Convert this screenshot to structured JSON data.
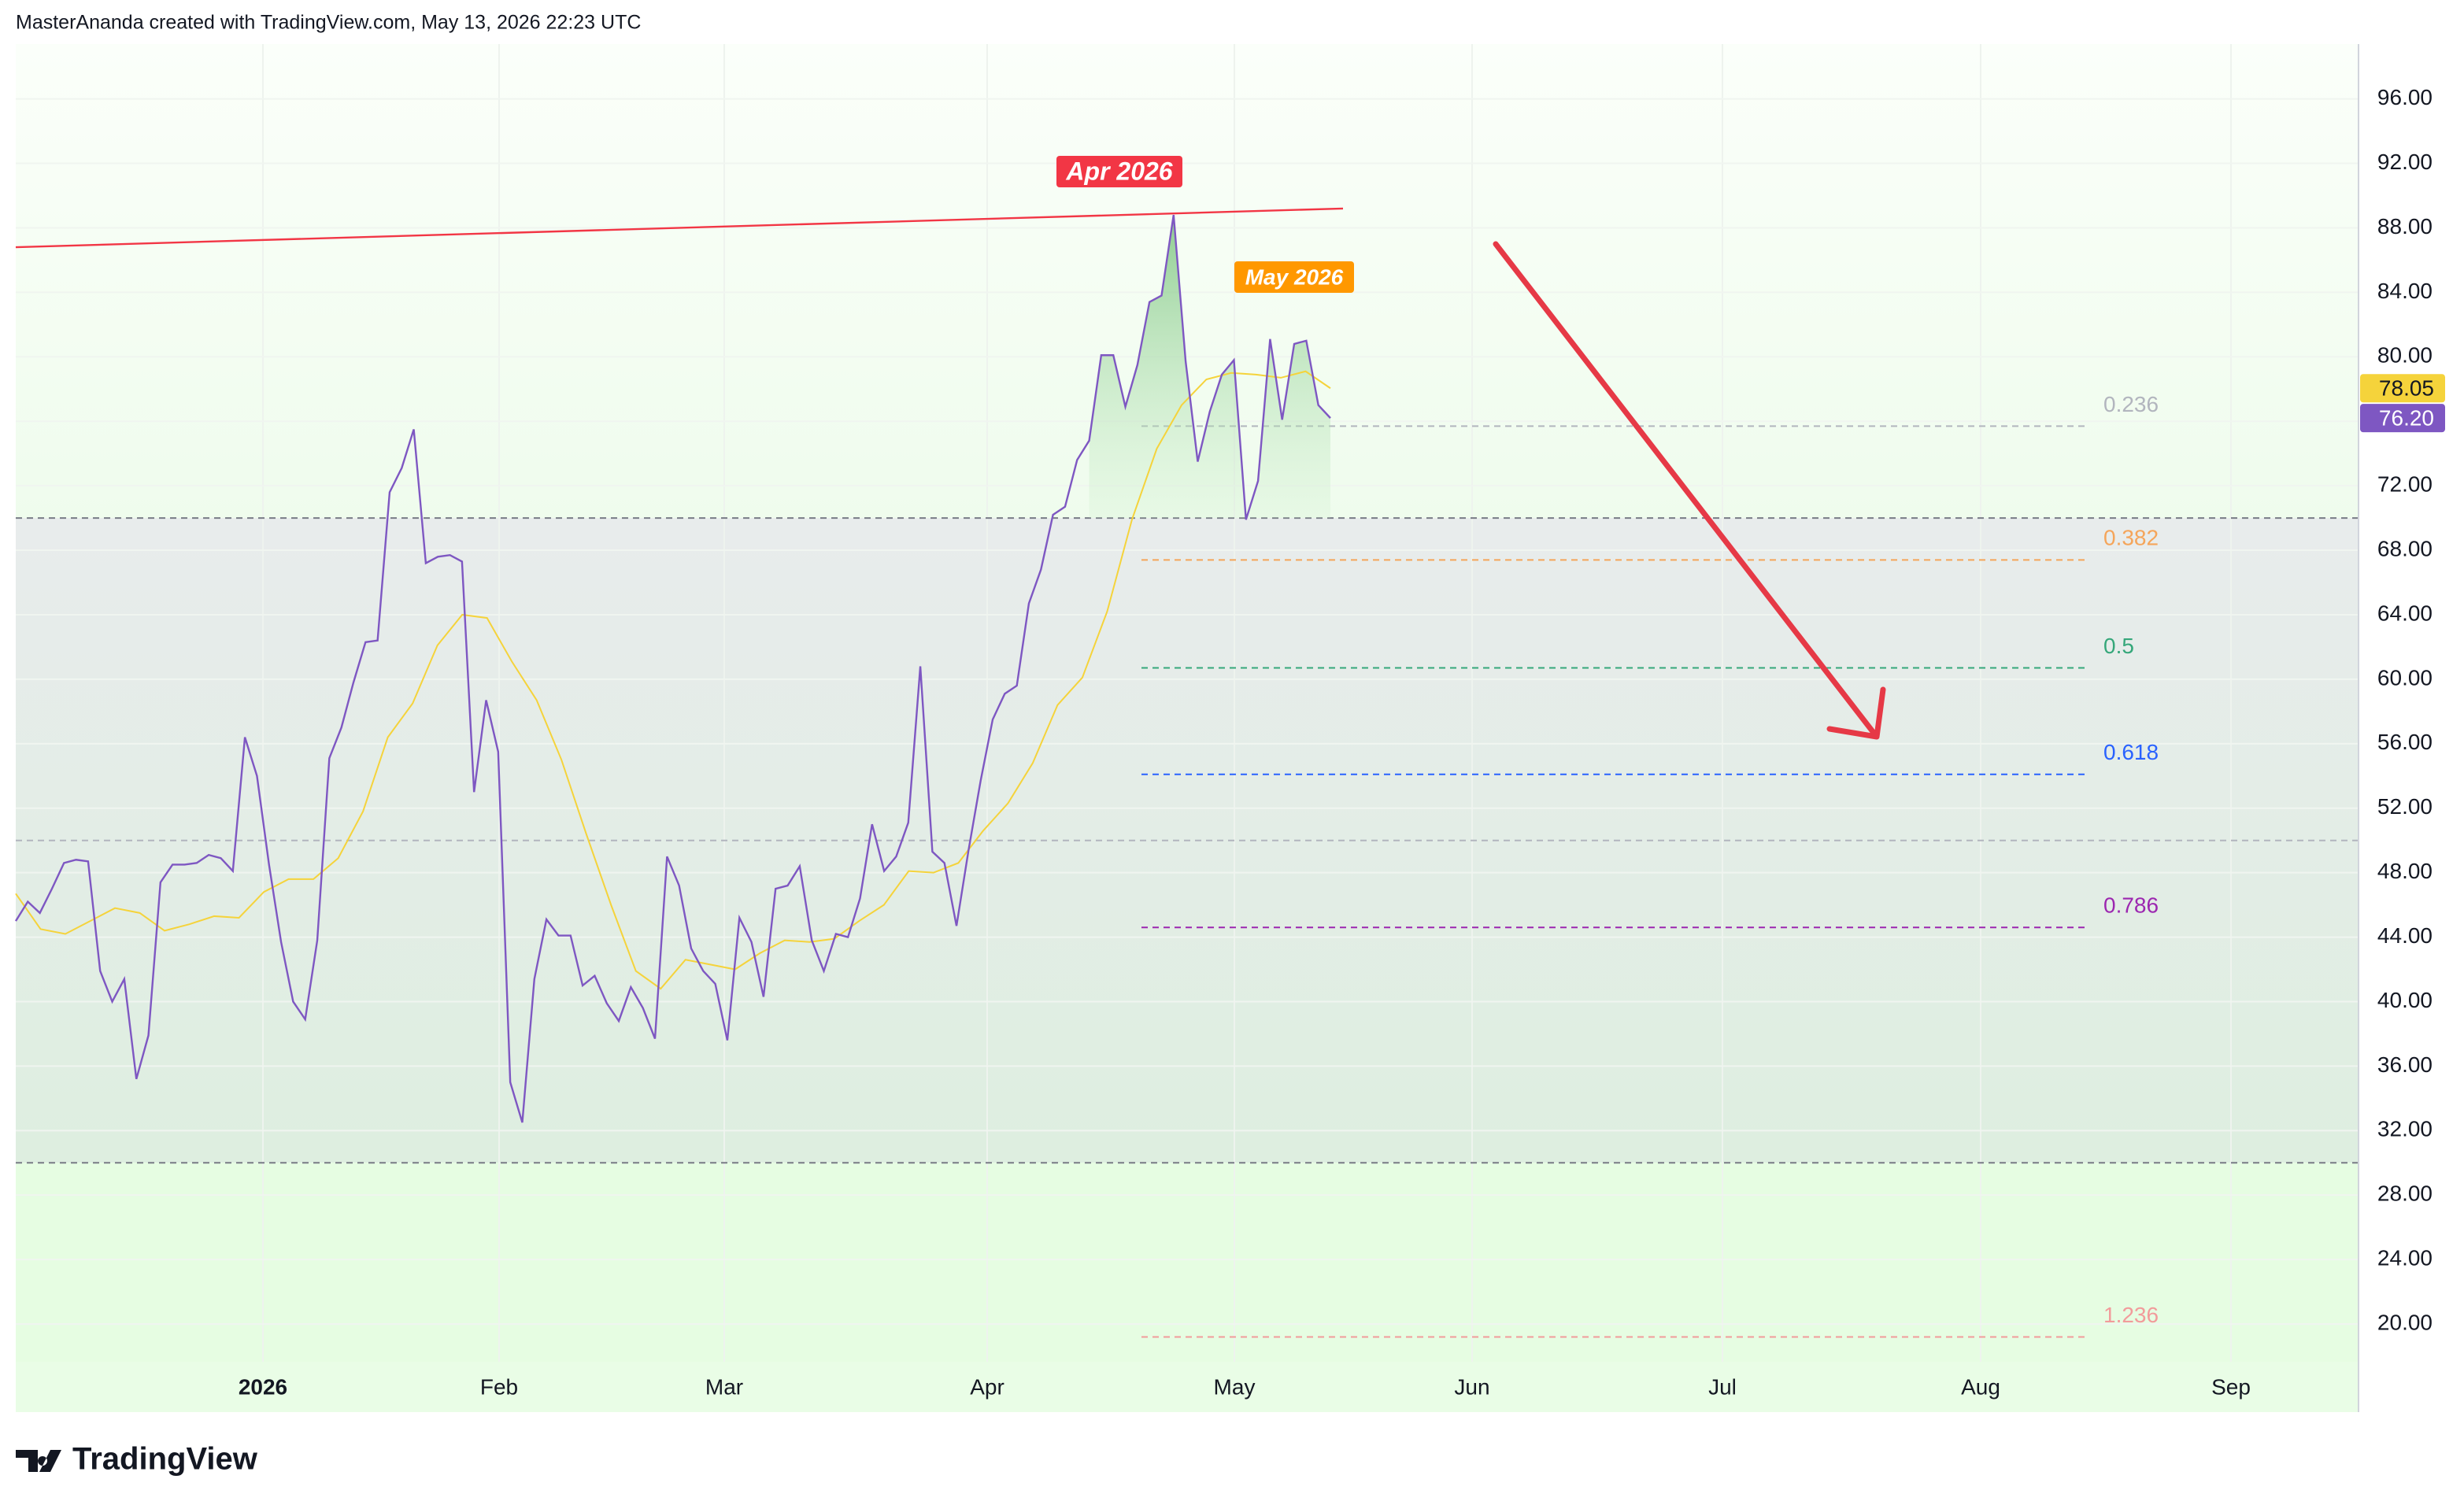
{
  "header": {
    "text": "MasterAnanda created with TradingView.com, May 13, 2026 22:23 UTC"
  },
  "footer": {
    "logo": "TradingView"
  },
  "chart_data": {
    "type": "line",
    "ylim": [
      17.66,
      99.4
    ],
    "yticks": [
      {
        "value": 20,
        "label": "20.00"
      },
      {
        "value": 24,
        "label": "24.00"
      },
      {
        "value": 28,
        "label": "28.00"
      },
      {
        "value": 32,
        "label": "32.00"
      },
      {
        "value": 36,
        "label": "36.00"
      },
      {
        "value": 40,
        "label": "40.00"
      },
      {
        "value": 44,
        "label": "44.00"
      },
      {
        "value": 48,
        "label": "48.00"
      },
      {
        "value": 52,
        "label": "52.00"
      },
      {
        "value": 56,
        "label": "56.00"
      },
      {
        "value": 60,
        "label": "60.00"
      },
      {
        "value": 64,
        "label": "64.00"
      },
      {
        "value": 68,
        "label": "68.00"
      },
      {
        "value": 72,
        "label": "72.00"
      },
      {
        "value": 76,
        "label": "76.00"
      },
      {
        "value": 80,
        "label": "80.00"
      },
      {
        "value": 84,
        "label": "84.00"
      },
      {
        "value": 88,
        "label": "88.00"
      },
      {
        "value": 92,
        "label": "92.00"
      },
      {
        "value": 96,
        "label": "96.00"
      }
    ],
    "x_labels": [
      "2026",
      "Feb",
      "Mar",
      "Apr",
      "May",
      "Jun",
      "Jul",
      "Aug",
      "Sep"
    ],
    "levels": [
      {
        "value": 70,
        "color": "#787b86"
      },
      {
        "value": 50,
        "color": "#b2b5be"
      },
      {
        "value": 30,
        "color": "#787b86"
      }
    ],
    "series": [
      {
        "color": "#7e57c2",
        "last_label": "76.20",
        "values": [
          45,
          46.2,
          45.5,
          47,
          48.6,
          48.8,
          48.7,
          41.9,
          40,
          41.4,
          35.2,
          37.9,
          47.4,
          48.5,
          48.5,
          48.6,
          49.1,
          48.9,
          48.1,
          56.4,
          54,
          48.5,
          43.7,
          40,
          38.9,
          43.8,
          55.1,
          57,
          59.8,
          62.3,
          62.4,
          71.6,
          73.1,
          75.5,
          67.2,
          67.6,
          67.7,
          67.3,
          53,
          58.7,
          55.5,
          35,
          32.5,
          41.4,
          45.1,
          44.1,
          44.1,
          41,
          41.6,
          39.9,
          38.8,
          40.9,
          39.6,
          37.7,
          49,
          47.2,
          43.3,
          41.9,
          41.1,
          37.6,
          45.2,
          43.7,
          40.3,
          47,
          47.2,
          48.4,
          43.8,
          41.9,
          44.2,
          44,
          46.4,
          51,
          48.1,
          49,
          51.1,
          60.8,
          49.3,
          48.6,
          44.7,
          49.4,
          53.7,
          57.5,
          59.1,
          59.6,
          64.7,
          66.8,
          70.2,
          70.7,
          73.6,
          74.8,
          80.1,
          80.1,
          76.9,
          79.5,
          83.4,
          83.8,
          88.8,
          79.7,
          73.5,
          76.6,
          78.9,
          79.8,
          69.9,
          72.3,
          81.1,
          76.1,
          80.8,
          81,
          77,
          76.2
        ]
      },
      {
        "color": "#f5d33b",
        "last_label": "78.05",
        "values": [
          46.7,
          44.5,
          44.2,
          45,
          45.8,
          45.5,
          44.4,
          44.8,
          45.3,
          45.2,
          46.8,
          47.6,
          47.6,
          48.9,
          51.8,
          56.4,
          58.5,
          62.1,
          64,
          63.8,
          61.1,
          58.7,
          55,
          50.4,
          46,
          41.9,
          40.8,
          42.6,
          42.3,
          42,
          43,
          43.8,
          43.7,
          43.9,
          45,
          46,
          48.1,
          48,
          48.6,
          50.6,
          52.3,
          54.8,
          58.4,
          60.1,
          64.2,
          69.9,
          74.3,
          77,
          78.6,
          79,
          78.9,
          78.7,
          79.1,
          78.05
        ]
      }
    ],
    "trendline": {
      "color": "#f23645",
      "values": [
        86.8,
        89.2
      ]
    },
    "fib_levels": [
      {
        "label": "0.236",
        "value": 75.7,
        "color": "#b2b5be"
      },
      {
        "label": "0.382",
        "value": 67.4,
        "color": "#f5a55a"
      },
      {
        "label": "0.5",
        "value": 60.7,
        "color": "#35a77a"
      },
      {
        "label": "0.618",
        "value": 54.1,
        "color": "#2962ff"
      },
      {
        "label": "0.786",
        "value": 44.6,
        "color": "#9c27b0"
      },
      {
        "label": "1.236",
        "value": 19.2,
        "color": "#f29b9b"
      }
    ],
    "annotations": [
      {
        "text": "Apr 2026",
        "color": "#f23645"
      },
      {
        "text": "May 2026",
        "color": "#ff9800"
      }
    ]
  }
}
